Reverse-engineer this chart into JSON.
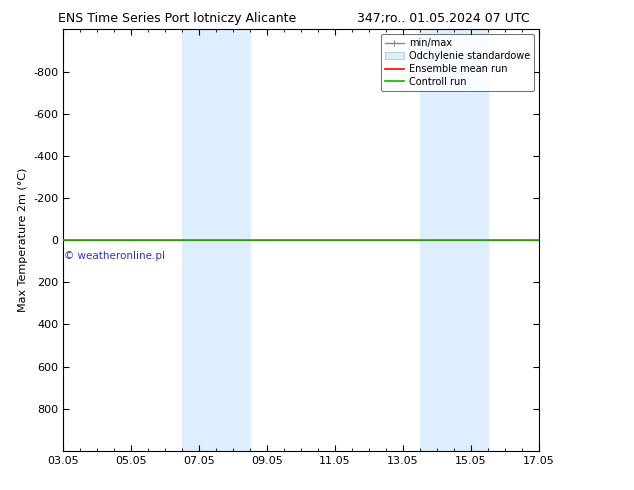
{
  "title_left": "ENS Time Series Port lotniczy Alicante",
  "title_right": "347;ro.. 01.05.2024 07 UTC",
  "ylabel": "Max Temperature 2m (°C)",
  "ylim_top": -1000,
  "ylim_bottom": 1000,
  "yticks": [
    -800,
    -600,
    -400,
    -200,
    0,
    200,
    400,
    600,
    800
  ],
  "xtick_labels": [
    "03.05",
    "05.05",
    "07.05",
    "09.05",
    "11.05",
    "13.05",
    "15.05",
    "17.05"
  ],
  "xtick_positions": [
    0,
    2,
    4,
    6,
    8,
    10,
    12,
    14
  ],
  "x_minor_positions": [
    0.5,
    1,
    1.5,
    2.5,
    3,
    3.5,
    4.5,
    5,
    5.5,
    6.5,
    7,
    7.5,
    8.5,
    9,
    9.5,
    10.5,
    11,
    11.5,
    12.5,
    13,
    13.5
  ],
  "shade_regions": [
    {
      "x_start": 3.5,
      "x_end": 5.5,
      "color": "#ddeeff"
    },
    {
      "x_start": 10.5,
      "x_end": 12.5,
      "color": "#ddeeff"
    }
  ],
  "green_line_y": 0,
  "red_line_y": 0,
  "green_line_color": "#00bb00",
  "red_line_color": "#ff0000",
  "legend_labels": [
    "min/max",
    "Odchylenie standardowe",
    "Ensemble mean run",
    "Controll run"
  ],
  "watermark": "© weatheronline.pl",
  "watermark_color": "#3333cc",
  "background_color": "#ffffff",
  "title_fontsize": 9,
  "axis_fontsize": 8,
  "tick_fontsize": 8
}
